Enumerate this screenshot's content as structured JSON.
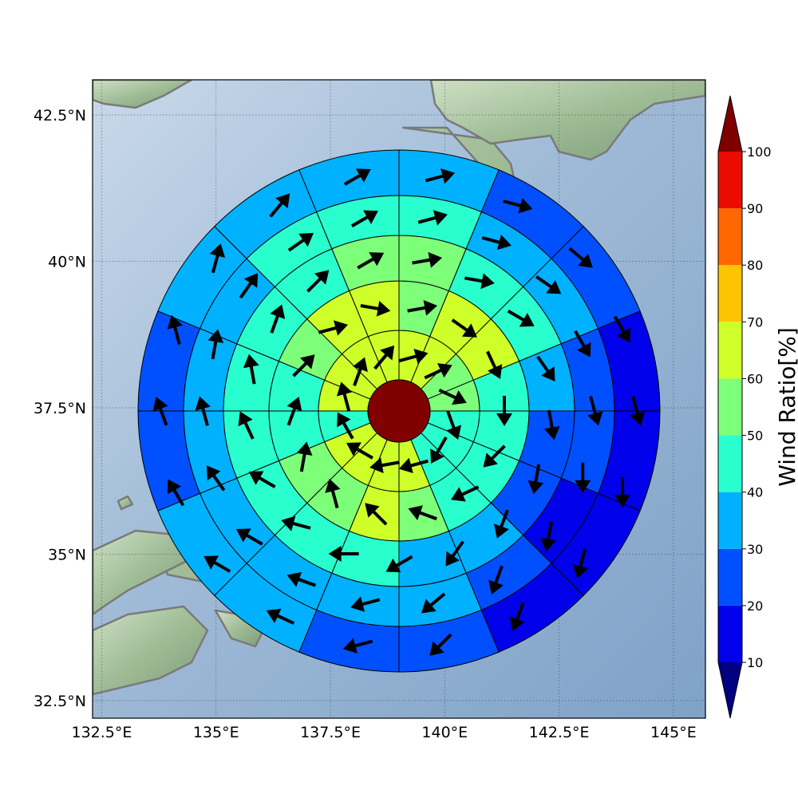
{
  "map": {
    "lon_range": [
      132.3,
      145.7
    ],
    "lat_range": [
      32.2,
      43.1
    ],
    "grid": true,
    "lon_ticks": [
      "132.5°E",
      "135°E",
      "137.5°E",
      "140°E",
      "142.5°E",
      "145°E"
    ],
    "lat_ticks": [
      "32.5°N",
      "35°N",
      "37.5°N",
      "40°N",
      "42.5°N"
    ],
    "lon_tick_values": [
      132.5,
      135,
      137.5,
      140,
      142.5,
      145
    ],
    "lat_tick_values": [
      32.5,
      35,
      37.5,
      40,
      42.5
    ],
    "background": "shaded relief with ocean",
    "ocean_color": "#9db8d4",
    "land_color": "#9fbc96",
    "coastline_color": "#7a7a7a"
  },
  "storm_grid": {
    "center_lon": 139.0,
    "center_lat": 37.7,
    "center_value": 100,
    "ring_sectors": 16,
    "ring_values": [
      [
        60,
        60,
        50,
        50,
        40,
        40,
        40,
        60,
        60,
        60,
        60,
        40,
        60,
        60,
        60,
        60
      ],
      [
        50,
        60,
        60,
        40,
        40,
        40,
        40,
        50,
        60,
        50,
        50,
        40,
        40,
        50,
        60,
        60
      ],
      [
        50,
        40,
        40,
        30,
        20,
        20,
        30,
        30,
        40,
        40,
        40,
        40,
        40,
        40,
        40,
        50
      ],
      [
        40,
        30,
        30,
        20,
        20,
        10,
        20,
        30,
        30,
        30,
        30,
        30,
        30,
        30,
        40,
        40
      ],
      [
        30,
        20,
        20,
        10,
        10,
        10,
        10,
        20,
        20,
        30,
        30,
        20,
        20,
        30,
        30,
        30
      ]
    ],
    "wind_dir_deg": [
      [
        75,
        65,
        115,
        160,
        210,
        255,
        260,
        300,
        330,
        345,
        20,
        40
      ],
      [
        80,
        125,
        155,
        180,
        225,
        245,
        290,
        315,
        345,
        10,
        20,
        45,
        75,
        100
      ],
      [
        80,
        100,
        120,
        145,
        170,
        190,
        200,
        215,
        240,
        270,
        285,
        300,
        335,
        350,
        20,
        45,
        60
      ],
      [
        75,
        105,
        125,
        150,
        165,
        180,
        190,
        200,
        230,
        255,
        290,
        300,
        325,
        345,
        10,
        35,
        55,
        60
      ],
      [
        75,
        105,
        130,
        150,
        165,
        180,
        195,
        200,
        225,
        255,
        295,
        300,
        330,
        340,
        345,
        15,
        40,
        60
      ]
    ]
  },
  "colorbar": {
    "title": "Wind Ratio[%]",
    "ticks": [
      "10",
      "20",
      "30",
      "40",
      "50",
      "60",
      "70",
      "80",
      "90",
      "100"
    ],
    "bins": [
      {
        "color": "#000080"
      },
      {
        "color": "#0000ea"
      },
      {
        "color": "#0050ff"
      },
      {
        "color": "#00b1ff"
      },
      {
        "color": "#29ffce"
      },
      {
        "color": "#7dff7a"
      },
      {
        "color": "#ceff29"
      },
      {
        "color": "#ffc400"
      },
      {
        "color": "#ff6800"
      },
      {
        "color": "#ea0c00"
      },
      {
        "color": "#800000"
      }
    ]
  }
}
